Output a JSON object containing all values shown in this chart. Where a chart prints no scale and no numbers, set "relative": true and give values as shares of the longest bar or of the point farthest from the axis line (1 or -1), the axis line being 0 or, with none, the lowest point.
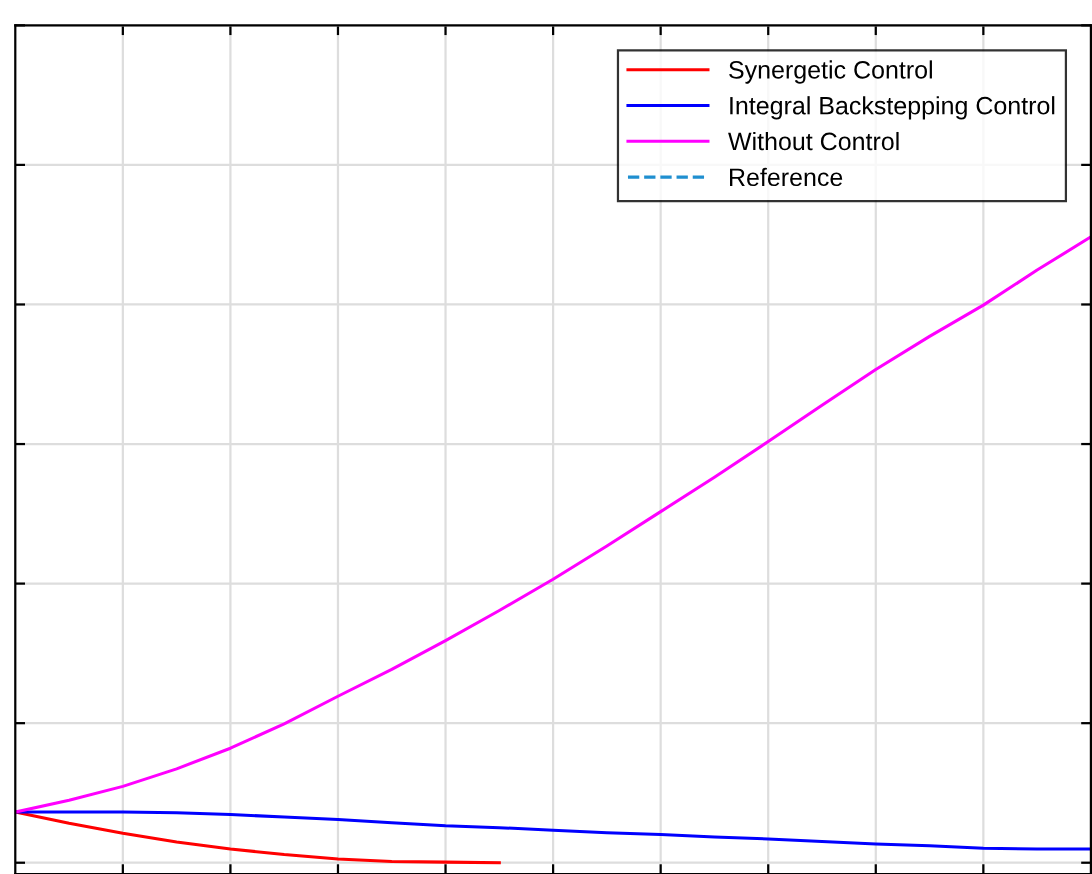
{
  "chart_data": {
    "type": "line",
    "relative": true,
    "grid": true,
    "legend": "top right",
    "line_style": "solid",
    "categories": [
      null,
      null,
      null,
      null,
      null,
      null,
      null,
      null,
      null,
      null,
      null,
      null,
      null,
      null,
      null,
      null,
      null,
      null,
      null,
      null,
      null
    ],
    "series": [
      {
        "name": "Synergetic Control",
        "color": "#ff0000",
        "values": [
          0.081,
          0.063,
          0.047,
          0.033,
          0.022,
          0.013,
          0.006,
          0.002,
          0.001,
          0,
          null,
          null,
          null,
          null,
          null,
          null,
          null,
          null,
          null,
          null,
          null
        ]
      },
      {
        "name": "Integral Backstepping Control",
        "color": "#0000ff",
        "values": [
          0.081,
          0.081,
          0.081,
          0.08,
          0.077,
          0.073,
          0.069,
          0.064,
          0.059,
          0.056,
          0.052,
          0.048,
          0.045,
          0.041,
          0.038,
          0.034,
          0.03,
          0.027,
          0.023,
          0.022,
          0.022
        ]
      },
      {
        "name": "Without Control",
        "color": "#ff00ff",
        "values": [
          0.081,
          0.1,
          0.122,
          0.15,
          0.183,
          0.222,
          0.266,
          0.309,
          0.355,
          0.403,
          0.453,
          0.506,
          0.561,
          0.616,
          0.673,
          0.731,
          0.788,
          0.841,
          0.891,
          0.947,
          1
        ]
      },
      {
        "name": "Reference",
        "color": "#1f8fd0",
        "line_style": "dashed",
        "values": [
          null,
          null,
          null,
          null,
          null,
          null,
          null,
          null,
          null,
          null,
          null,
          null,
          null,
          null,
          null,
          null,
          null,
          null,
          null,
          null,
          null
        ]
      }
    ]
  }
}
